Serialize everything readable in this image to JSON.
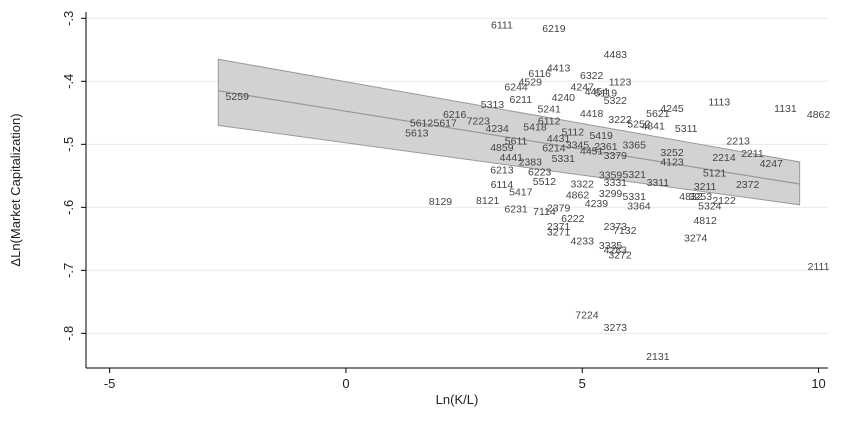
{
  "chart_data": {
    "type": "scatter",
    "subtype": "labeled scatter with linear fit and confidence band",
    "xlabel": "Ln(K/L)",
    "ylabel": "ΔLn(Market Capitalization)",
    "xlim": [
      -5.5,
      10.2
    ],
    "ylim": [
      -0.855,
      -0.29
    ],
    "xticks": [
      -5,
      0,
      5,
      10
    ],
    "yticks": [
      -0.3,
      -0.4,
      -0.5,
      -0.6,
      -0.7,
      -0.8
    ],
    "ytick_labels": [
      "-.3",
      "-.4",
      "-.5",
      "-.6",
      "-.7",
      "-.8"
    ],
    "grid": "horizontal",
    "fit": {
      "x_range": [
        -2.7,
        9.6
      ],
      "y_at_start": -0.415,
      "y_at_end": -0.563,
      "band_upper_start": -0.365,
      "band_lower_start": -0.47,
      "band_upper_end": -0.528,
      "band_lower_end": -0.596,
      "line_color": "#999999",
      "band_color": "#d2d2d2"
    },
    "points": [
      {
        "label": "6111",
        "x": 3.3,
        "y": -0.31
      },
      {
        "label": "6219",
        "x": 4.4,
        "y": -0.315
      },
      {
        "label": "4483",
        "x": 5.7,
        "y": -0.357
      },
      {
        "label": "4413",
        "x": 4.5,
        "y": -0.378
      },
      {
        "label": "6116",
        "x": 4.1,
        "y": -0.387
      },
      {
        "label": "6322",
        "x": 5.2,
        "y": -0.39
      },
      {
        "label": "1123",
        "x": 5.8,
        "y": -0.4
      },
      {
        "label": "4529",
        "x": 3.9,
        "y": -0.4
      },
      {
        "label": "6244",
        "x": 3.6,
        "y": -0.408
      },
      {
        "label": "6211",
        "x": 3.7,
        "y": -0.428
      },
      {
        "label": "5313",
        "x": 3.1,
        "y": -0.436
      },
      {
        "label": "5259",
        "x": -2.3,
        "y": -0.423
      },
      {
        "label": "1113",
        "x": 7.9,
        "y": -0.432
      },
      {
        "label": "1131",
        "x": 9.3,
        "y": -0.442
      },
      {
        "label": "4862",
        "x": 10.0,
        "y": -0.452
      },
      {
        "label": "4245",
        "x": 6.9,
        "y": -0.442
      },
      {
        "label": "5621",
        "x": 6.6,
        "y": -0.45
      },
      {
        "label": "6216",
        "x": 2.3,
        "y": -0.452
      },
      {
        "label": "7223",
        "x": 2.8,
        "y": -0.462
      },
      {
        "label": "5612",
        "x": 1.6,
        "y": -0.465
      },
      {
        "label": "5617",
        "x": 2.1,
        "y": -0.465
      },
      {
        "label": "4234",
        "x": 3.2,
        "y": -0.474
      },
      {
        "label": "5613",
        "x": 1.5,
        "y": -0.481
      },
      {
        "label": "5311",
        "x": 7.2,
        "y": -0.474
      },
      {
        "label": "2213",
        "x": 8.3,
        "y": -0.494
      },
      {
        "label": "4859",
        "x": 3.3,
        "y": -0.504
      },
      {
        "label": "5611",
        "x": 3.6,
        "y": -0.494
      },
      {
        "label": "3252",
        "x": 6.9,
        "y": -0.512
      },
      {
        "label": "2211",
        "x": 8.6,
        "y": -0.514
      },
      {
        "label": "2214",
        "x": 8.0,
        "y": -0.52
      },
      {
        "label": "4247",
        "x": 9.0,
        "y": -0.53
      },
      {
        "label": "6213",
        "x": 3.3,
        "y": -0.54
      },
      {
        "label": "5121",
        "x": 7.8,
        "y": -0.545
      },
      {
        "label": "2372",
        "x": 8.5,
        "y": -0.563
      },
      {
        "label": "6114",
        "x": 3.3,
        "y": -0.563
      },
      {
        "label": "5417",
        "x": 3.7,
        "y": -0.575
      },
      {
        "label": "3211",
        "x": 7.6,
        "y": -0.566
      },
      {
        "label": "4832",
        "x": 7.3,
        "y": -0.582
      },
      {
        "label": "2122",
        "x": 8.0,
        "y": -0.588
      },
      {
        "label": "8129",
        "x": 2.0,
        "y": -0.59
      },
      {
        "label": "8121",
        "x": 3.0,
        "y": -0.588
      },
      {
        "label": "3253",
        "x": 7.5,
        "y": -0.582
      },
      {
        "label": "5324",
        "x": 7.7,
        "y": -0.597
      },
      {
        "label": "6231",
        "x": 3.6,
        "y": -0.602
      },
      {
        "label": "2379",
        "x": 4.5,
        "y": -0.6
      },
      {
        "label": "3364",
        "x": 6.2,
        "y": -0.597
      },
      {
        "label": "4812",
        "x": 7.6,
        "y": -0.62
      },
      {
        "label": "7114",
        "x": 4.2,
        "y": -0.606
      },
      {
        "label": "6222",
        "x": 4.8,
        "y": -0.617
      },
      {
        "label": "2371",
        "x": 4.5,
        "y": -0.63
      },
      {
        "label": "2373",
        "x": 5.7,
        "y": -0.63
      },
      {
        "label": "7132",
        "x": 5.9,
        "y": -0.636
      },
      {
        "label": "3271",
        "x": 4.5,
        "y": -0.638
      },
      {
        "label": "4233",
        "x": 5.0,
        "y": -0.653
      },
      {
        "label": "3274",
        "x": 7.4,
        "y": -0.648
      },
      {
        "label": "3335",
        "x": 5.6,
        "y": -0.66
      },
      {
        "label": "4283",
        "x": 5.7,
        "y": -0.667
      },
      {
        "label": "3272",
        "x": 5.8,
        "y": -0.675
      },
      {
        "label": "2111",
        "x": 10.0,
        "y": -0.693
      },
      {
        "label": "7224",
        "x": 5.1,
        "y": -0.77
      },
      {
        "label": "3273",
        "x": 5.7,
        "y": -0.79
      },
      {
        "label": "2131",
        "x": 6.6,
        "y": -0.836
      },
      {
        "label": "4247",
        "x": 5.0,
        "y": -0.408
      },
      {
        "label": "4454",
        "x": 5.3,
        "y": -0.415
      },
      {
        "label": "5119",
        "x": 5.5,
        "y": -0.418
      },
      {
        "label": "4240",
        "x": 4.6,
        "y": -0.425
      },
      {
        "label": "5322",
        "x": 5.7,
        "y": -0.43
      },
      {
        "label": "5241",
        "x": 4.3,
        "y": -0.443
      },
      {
        "label": "4418",
        "x": 5.2,
        "y": -0.45
      },
      {
        "label": "5252",
        "x": 6.2,
        "y": -0.467
      },
      {
        "label": "6112",
        "x": 4.3,
        "y": -0.462
      },
      {
        "label": "5418",
        "x": 4.0,
        "y": -0.472
      },
      {
        "label": "4841",
        "x": 6.5,
        "y": -0.47
      },
      {
        "label": "5112",
        "x": 4.8,
        "y": -0.48
      },
      {
        "label": "5419",
        "x": 5.4,
        "y": -0.485
      },
      {
        "label": "3365",
        "x": 6.1,
        "y": -0.5
      },
      {
        "label": "4441",
        "x": 3.5,
        "y": -0.52
      },
      {
        "label": "2383",
        "x": 3.9,
        "y": -0.527
      },
      {
        "label": "5331",
        "x": 4.6,
        "y": -0.522
      },
      {
        "label": "3379",
        "x": 5.7,
        "y": -0.517
      },
      {
        "label": "4123",
        "x": 6.9,
        "y": -0.527
      },
      {
        "label": "6223",
        "x": 4.1,
        "y": -0.543
      },
      {
        "label": "3359",
        "x": 5.6,
        "y": -0.548
      },
      {
        "label": "5321",
        "x": 6.1,
        "y": -0.547
      },
      {
        "label": "5512",
        "x": 4.2,
        "y": -0.558
      },
      {
        "label": "3322",
        "x": 5.0,
        "y": -0.562
      },
      {
        "label": "3331",
        "x": 5.7,
        "y": -0.56
      },
      {
        "label": "3311",
        "x": 6.6,
        "y": -0.56
      },
      {
        "label": "3299",
        "x": 5.6,
        "y": -0.577
      },
      {
        "label": "4862",
        "x": 4.9,
        "y": -0.58
      },
      {
        "label": "5331",
        "x": 6.1,
        "y": -0.582
      },
      {
        "label": "4239",
        "x": 5.3,
        "y": -0.593
      },
      {
        "label": "6214",
        "x": 4.4,
        "y": -0.505
      },
      {
        "label": "4451",
        "x": 5.2,
        "y": -0.51
      },
      {
        "label": "3345",
        "x": 4.9,
        "y": -0.5
      },
      {
        "label": "2361",
        "x": 5.5,
        "y": -0.503
      },
      {
        "label": "3222",
        "x": 5.8,
        "y": -0.46
      },
      {
        "label": "4431",
        "x": 4.5,
        "y": -0.49
      }
    ]
  }
}
